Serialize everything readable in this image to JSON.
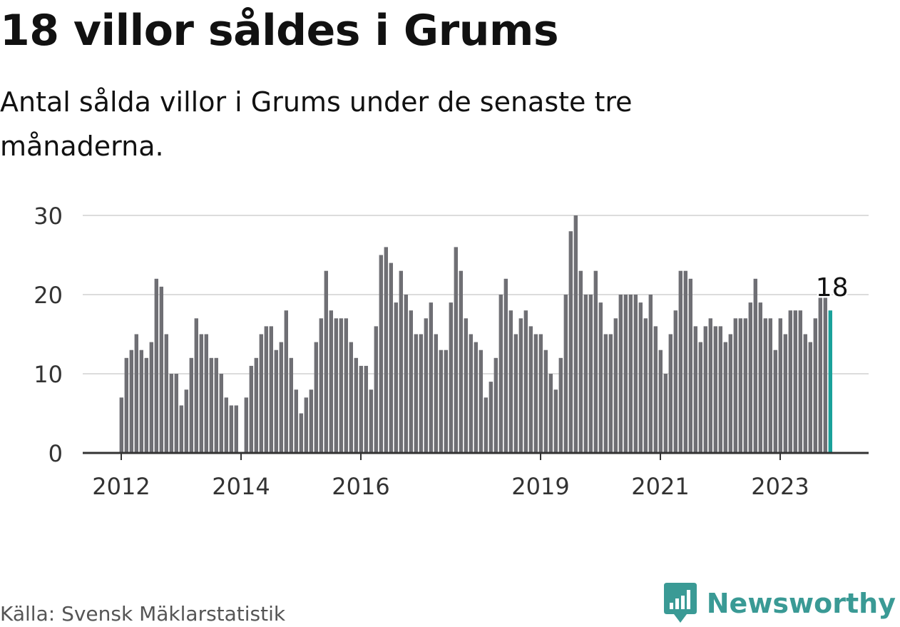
{
  "header": {
    "title": "18 villor såldes i Grums",
    "subtitle": "Antal sålda villor i Grums under de senaste tre månaderna."
  },
  "footer": {
    "source": "Källa: Svensk Mäklarstatistik",
    "brand": "Newsworthy"
  },
  "colors": {
    "bar": "#6f6f74",
    "highlight": "#1aa19a",
    "grid": "#dcdcdc",
    "axis": "#333333",
    "brand": "#3a9a95"
  },
  "chart_data": {
    "type": "bar",
    "ylim": [
      0,
      30
    ],
    "yticks": [
      0,
      10,
      20,
      30
    ],
    "grid": true,
    "x_start": "2012-01",
    "xtick_labels": [
      {
        "label": "2012",
        "month": "2012-01"
      },
      {
        "label": "2014",
        "month": "2014-01"
      },
      {
        "label": "2016",
        "month": "2016-01"
      },
      {
        "label": "2019",
        "month": "2019-01"
      },
      {
        "label": "2021",
        "month": "2021-01"
      },
      {
        "label": "2023",
        "month": "2023-01"
      }
    ],
    "values": [
      7,
      12,
      13,
      15,
      13,
      12,
      14,
      22,
      21,
      15,
      10,
      10,
      6,
      8,
      12,
      17,
      15,
      15,
      12,
      12,
      10,
      7,
      6,
      6,
      0,
      7,
      11,
      12,
      15,
      16,
      16,
      13,
      14,
      18,
      12,
      8,
      5,
      7,
      8,
      14,
      17,
      23,
      18,
      17,
      17,
      17,
      14,
      12,
      11,
      11,
      8,
      16,
      25,
      26,
      24,
      19,
      23,
      20,
      18,
      15,
      15,
      17,
      19,
      15,
      13,
      13,
      19,
      26,
      23,
      17,
      15,
      14,
      13,
      7,
      9,
      12,
      20,
      22,
      18,
      15,
      17,
      18,
      16,
      15,
      15,
      13,
      10,
      8,
      12,
      20,
      28,
      30,
      23,
      20,
      20,
      23,
      19,
      15,
      15,
      17,
      20,
      20,
      20,
      20,
      19,
      17,
      20,
      16,
      13,
      10,
      15,
      18,
      23,
      23,
      22,
      16,
      14,
      16,
      17,
      16,
      16,
      14,
      15,
      17,
      17,
      17,
      19,
      22,
      19,
      17,
      17,
      13,
      17,
      15,
      18,
      18,
      18,
      15,
      14,
      17,
      20,
      20,
      18
    ],
    "highlight_last": true,
    "annotation": "18"
  }
}
